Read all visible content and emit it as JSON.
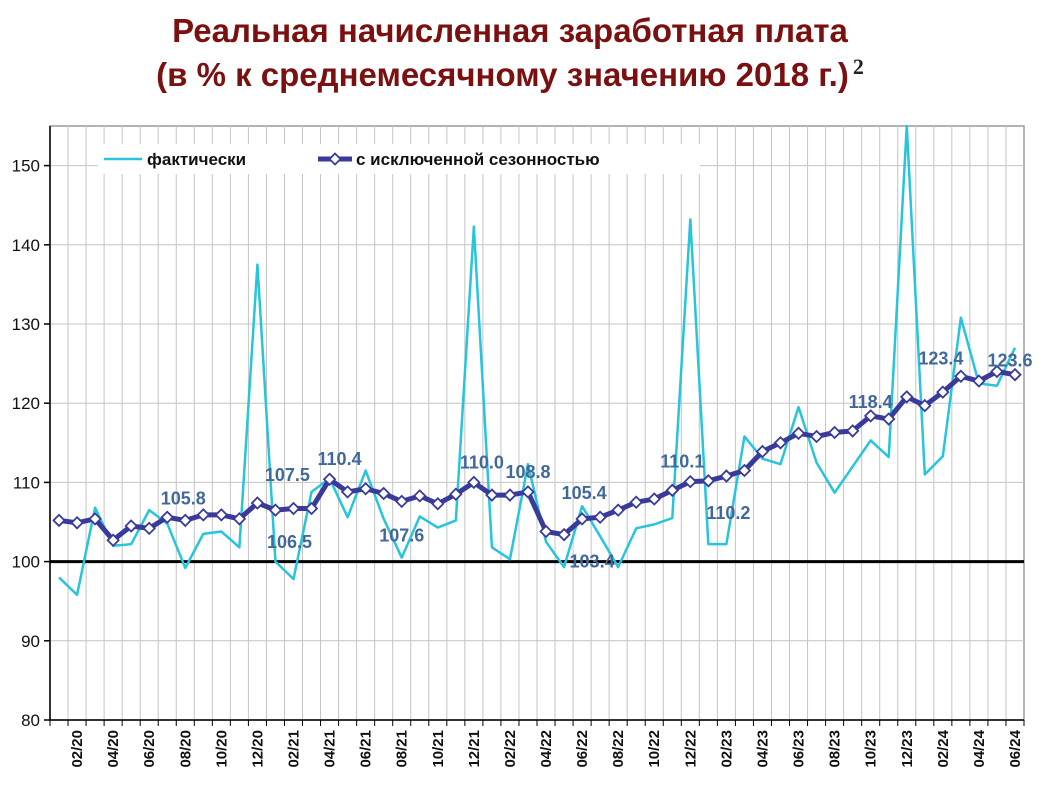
{
  "title_line1": "Реальная начисленная заработная плата",
  "title_line2": "(в % к среднемесячному значению 2018 г.)",
  "title_note": "2",
  "chart_data": {
    "type": "line",
    "xlabel": "",
    "ylabel": "",
    "ylim": [
      80,
      155
    ],
    "yticks": [
      80,
      90,
      100,
      110,
      120,
      130,
      140,
      150
    ],
    "x": [
      "01/20",
      "02/20",
      "03/20",
      "04/20",
      "05/20",
      "06/20",
      "07/20",
      "08/20",
      "09/20",
      "10/20",
      "11/20",
      "12/20",
      "01/21",
      "02/21",
      "03/21",
      "04/21",
      "05/21",
      "06/21",
      "07/21",
      "08/21",
      "09/21",
      "10/21",
      "11/21",
      "12/21",
      "01/22",
      "02/22",
      "03/22",
      "04/22",
      "05/22",
      "06/22",
      "07/22",
      "08/22",
      "09/22",
      "10/22",
      "11/22",
      "12/22",
      "01/23",
      "02/23",
      "03/23",
      "04/23",
      "05/23",
      "06/23",
      "07/23",
      "08/23",
      "09/23",
      "10/23",
      "11/23",
      "12/23",
      "01/24",
      "02/24",
      "03/24",
      "04/24",
      "05/24",
      "06/24"
    ],
    "xtick_labels": [
      "02/20",
      "04/20",
      "06/20",
      "08/20",
      "10/20",
      "12/20",
      "02/21",
      "04/21",
      "06/21",
      "08/21",
      "10/21",
      "12/21",
      "02/22",
      "04/22",
      "06/22",
      "08/22",
      "10/22",
      "12/22",
      "02/23",
      "04/23",
      "06/23",
      "08/23",
      "10/23",
      "12/23",
      "02/24",
      "04/24",
      "06/24"
    ],
    "grid": true,
    "legend_position": "top-left",
    "series": [
      {
        "name": "фактически",
        "color": "#27c4dd",
        "values": [
          98.0,
          95.8,
          106.8,
          102.0,
          102.2,
          106.5,
          104.8,
          99.2,
          103.5,
          103.8,
          101.8,
          137.5,
          100.0,
          97.8,
          108.8,
          110.5,
          105.6,
          111.5,
          105.4,
          100.5,
          105.7,
          104.3,
          105.2,
          142.3,
          101.8,
          100.3,
          112.3,
          102.5,
          99.3,
          107.0,
          103.2,
          99.3,
          104.2,
          104.7,
          105.5,
          143.2,
          102.2,
          102.2,
          115.8,
          113.0,
          112.3,
          119.5,
          112.5,
          108.7,
          112.0,
          115.3,
          113.2,
          155.0,
          111.0,
          113.3,
          130.8,
          122.5,
          122.2,
          127.0
        ]
      },
      {
        "name": "с исключенной сезонностью",
        "color": "#3a3a9a",
        "values": [
          105.2,
          104.9,
          105.4,
          102.7,
          104.5,
          104.2,
          105.6,
          105.2,
          105.9,
          105.9,
          105.4,
          107.4,
          106.5,
          106.7,
          106.7,
          110.4,
          108.8,
          109.2,
          108.6,
          107.6,
          108.3,
          107.3,
          108.5,
          110.0,
          108.4,
          108.4,
          108.8,
          103.8,
          103.4,
          105.4,
          105.6,
          106.5,
          107.5,
          107.9,
          109.0,
          110.1,
          110.2,
          110.8,
          111.5,
          113.9,
          115.0,
          116.2,
          115.8,
          116.3,
          116.5,
          118.4,
          118.0,
          120.8,
          119.7,
          121.4,
          123.4,
          122.8,
          124.0,
          123.6
        ]
      }
    ],
    "data_labels": [
      {
        "text": "105.8"
      },
      {
        "text": "107.5"
      },
      {
        "text": "106.5"
      },
      {
        "text": "110.4"
      },
      {
        "text": "107.6"
      },
      {
        "text": "110.0"
      },
      {
        "text": "108.8"
      },
      {
        "text": "105.4"
      },
      {
        "text": "103.4"
      },
      {
        "text": "110.1"
      },
      {
        "text": "110.2"
      },
      {
        "text": "118.4"
      },
      {
        "text": "123.4"
      },
      {
        "text": "123.6"
      }
    ]
  }
}
